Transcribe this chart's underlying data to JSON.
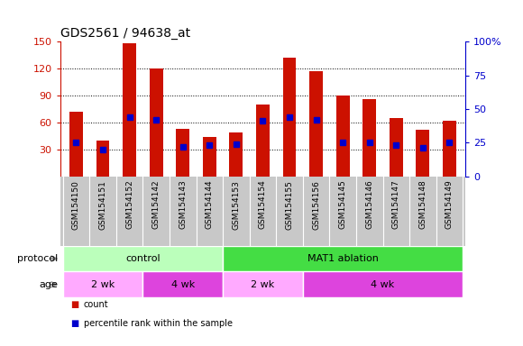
{
  "title": "GDS2561 / 94638_at",
  "samples": [
    "GSM154150",
    "GSM154151",
    "GSM154152",
    "GSM154142",
    "GSM154143",
    "GSM154144",
    "GSM154153",
    "GSM154154",
    "GSM154155",
    "GSM154156",
    "GSM154145",
    "GSM154146",
    "GSM154147",
    "GSM154148",
    "GSM154149"
  ],
  "counts": [
    72,
    40,
    148,
    120,
    53,
    44,
    49,
    80,
    132,
    117,
    90,
    86,
    65,
    52,
    62
  ],
  "percentiles": [
    25,
    20,
    44,
    42,
    22,
    23,
    24,
    41,
    44,
    42,
    25,
    25,
    23,
    21,
    25
  ],
  "ylim_left": [
    0,
    150
  ],
  "ylim_right": [
    0,
    100
  ],
  "yticks_left": [
    30,
    60,
    90,
    120,
    150
  ],
  "yticks_right": [
    0,
    25,
    50,
    75,
    100
  ],
  "bar_color": "#cc1100",
  "dot_color": "#0000cc",
  "xticklabel_bg": "#c8c8c8",
  "protocol_groups": [
    {
      "label": "control",
      "start": 0,
      "end": 5,
      "color": "#bbffbb"
    },
    {
      "label": "MAT1 ablation",
      "start": 6,
      "end": 14,
      "color": "#44dd44"
    }
  ],
  "age_groups": [
    {
      "label": "2 wk",
      "start": 0,
      "end": 2,
      "color": "#ffaaff"
    },
    {
      "label": "4 wk",
      "start": 3,
      "end": 5,
      "color": "#dd44dd"
    },
    {
      "label": "2 wk",
      "start": 6,
      "end": 8,
      "color": "#ffaaff"
    },
    {
      "label": "4 wk",
      "start": 9,
      "end": 14,
      "color": "#dd44dd"
    }
  ],
  "protocol_label": "protocol",
  "age_label": "age",
  "legend_items": [
    {
      "label": "count",
      "color": "#cc1100"
    },
    {
      "label": "percentile rank within the sample",
      "color": "#0000cc"
    }
  ],
  "bar_width": 0.5,
  "n_samples": 15
}
